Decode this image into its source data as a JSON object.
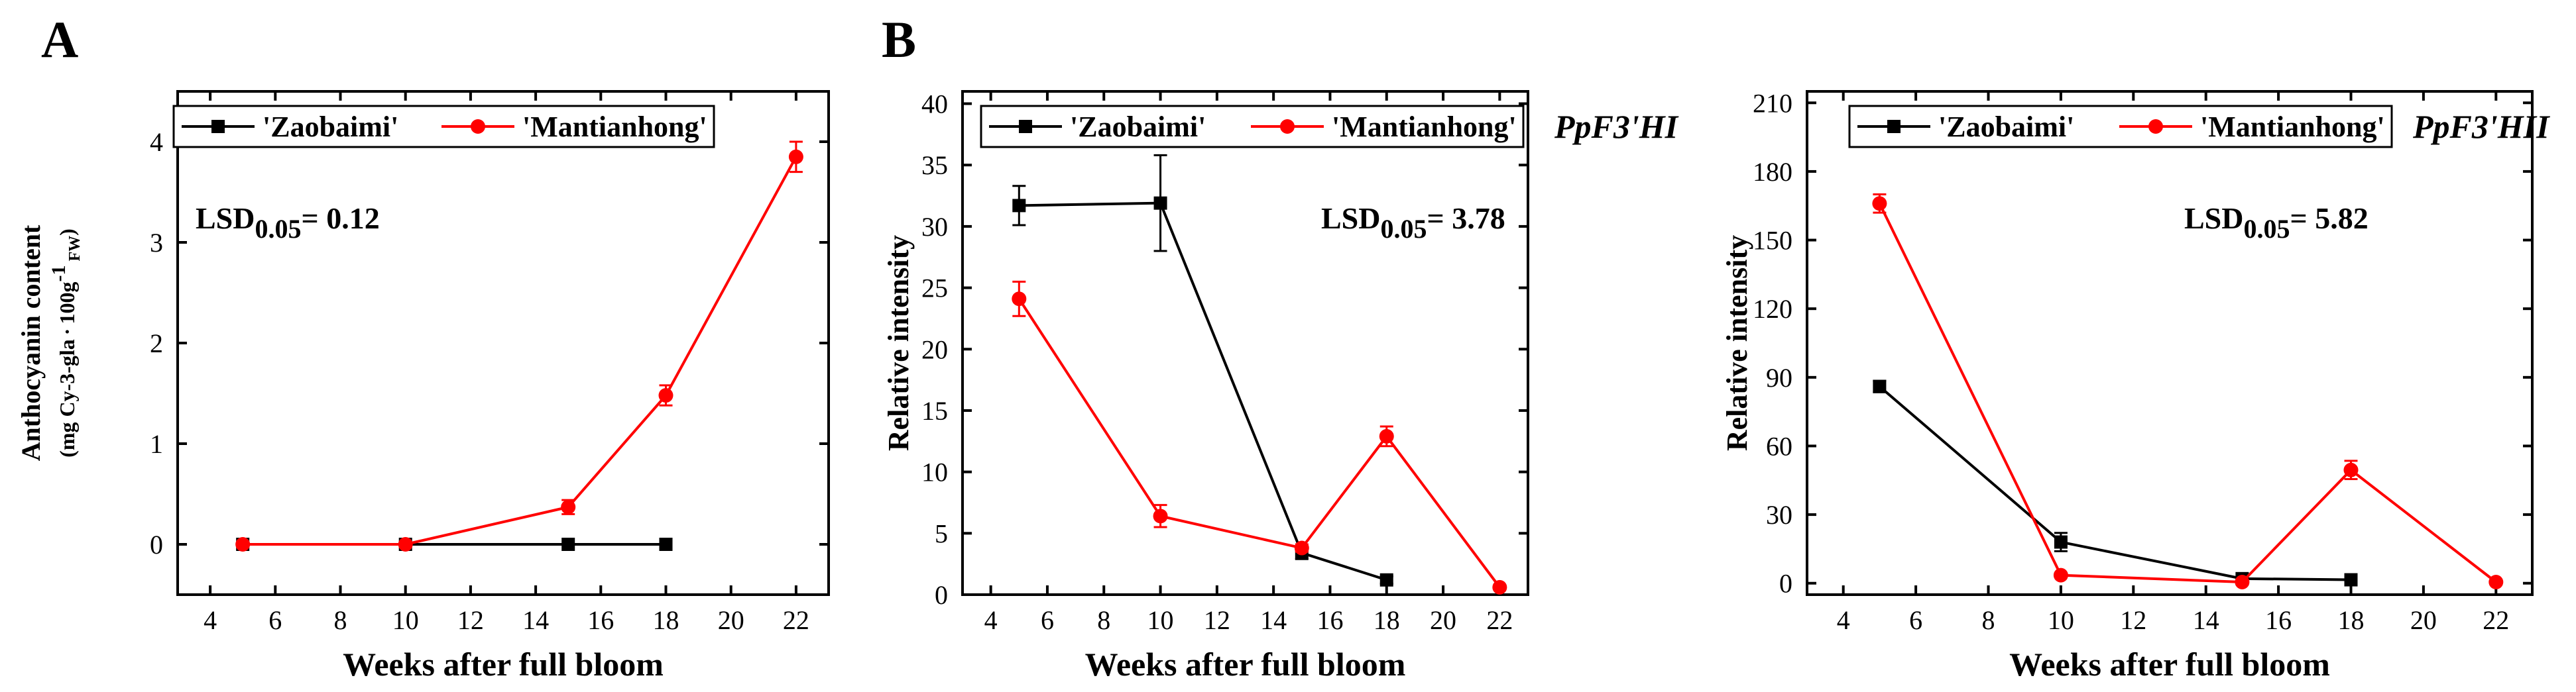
{
  "panel_labels": [
    "A",
    "B"
  ],
  "colors": {
    "zaobaimi": "#000000",
    "mantianhong": "#ff0000"
  },
  "chart_data": [
    {
      "type": "line",
      "panel": "A",
      "gene_label": "",
      "xlabel": "Weeks after full bloom",
      "ylabel": "Anthocyanin content",
      "ylabel_unit_prefix": "(mg Cy-3-gla",
      "ylabel_unit_mid": "100g",
      "ylabel_unit_sup": "-1",
      "ylabel_unit_sub": "FW",
      "ylabel_unit_close": ")",
      "xlim": [
        3,
        23
      ],
      "ylim": [
        -0.5,
        4.5
      ],
      "xticks": [
        4,
        6,
        8,
        10,
        12,
        14,
        16,
        18,
        20,
        22
      ],
      "yticks": [
        0,
        1,
        2,
        3,
        4
      ],
      "lsd_text": "LSD",
      "lsd_sub": "0.05",
      "lsd_value": "= 0.12",
      "series": [
        {
          "name": "'Zaobaimi'",
          "color": "#000000",
          "marker": "square",
          "x": [
            5,
            10,
            15,
            18
          ],
          "y": [
            0,
            0,
            0,
            0
          ],
          "err": [
            0,
            0,
            0,
            0
          ]
        },
        {
          "name": "'Mantianhong'",
          "color": "#ff0000",
          "marker": "circle",
          "x": [
            5,
            10,
            15,
            18,
            22
          ],
          "y": [
            0,
            0,
            0.37,
            1.48,
            3.85
          ],
          "err": [
            0,
            0,
            0.07,
            0.1,
            0.15
          ]
        }
      ]
    },
    {
      "type": "line",
      "panel": "B",
      "gene_label": "PpF3'HI",
      "xlabel": "Weeks after full bloom",
      "ylabel": "Relative intensity",
      "xlim": [
        3,
        23
      ],
      "ylim": [
        0,
        41
      ],
      "xticks": [
        4,
        6,
        8,
        10,
        12,
        14,
        16,
        18,
        20,
        22
      ],
      "yticks": [
        0,
        5,
        10,
        15,
        20,
        25,
        30,
        35,
        40
      ],
      "lsd_text": "LSD",
      "lsd_sub": "0.05",
      "lsd_value": "= 3.78",
      "series": [
        {
          "name": "'Zaobaimi'",
          "color": "#000000",
          "marker": "square",
          "x": [
            5,
            10,
            15,
            18
          ],
          "y": [
            31.7,
            31.9,
            3.4,
            1.2
          ],
          "err": [
            1.6,
            3.9,
            0.5,
            0.3
          ]
        },
        {
          "name": "'Mantianhong'",
          "color": "#ff0000",
          "marker": "circle",
          "x": [
            5,
            10,
            15,
            18,
            22
          ],
          "y": [
            24.1,
            6.4,
            3.8,
            12.9,
            0.6
          ],
          "err": [
            1.4,
            0.9,
            0.3,
            0.8,
            0.1
          ]
        }
      ]
    },
    {
      "type": "line",
      "panel": "",
      "gene_label": "PpF3'HII",
      "xlabel": "Weeks after full bloom",
      "ylabel": "Relative intensity",
      "xlim": [
        3,
        23
      ],
      "ylim": [
        -5,
        215
      ],
      "xticks": [
        4,
        6,
        8,
        10,
        12,
        14,
        16,
        18,
        20,
        22
      ],
      "yticks": [
        0,
        30,
        60,
        90,
        120,
        150,
        180,
        210
      ],
      "lsd_text": "LSD",
      "lsd_sub": "0.05",
      "lsd_value": "= 5.82",
      "series": [
        {
          "name": "'Zaobaimi'",
          "color": "#000000",
          "marker": "square",
          "x": [
            5,
            10,
            15,
            18
          ],
          "y": [
            86,
            18,
            2,
            1.5
          ],
          "err": [
            2.5,
            4,
            0.5,
            0.5
          ]
        },
        {
          "name": "'Mantianhong'",
          "color": "#ff0000",
          "marker": "circle",
          "x": [
            5,
            10,
            15,
            18,
            22
          ],
          "y": [
            166,
            3.5,
            0.5,
            49.5,
            0.5
          ],
          "err": [
            4,
            0.8,
            0.2,
            4,
            0.2
          ]
        }
      ]
    }
  ]
}
